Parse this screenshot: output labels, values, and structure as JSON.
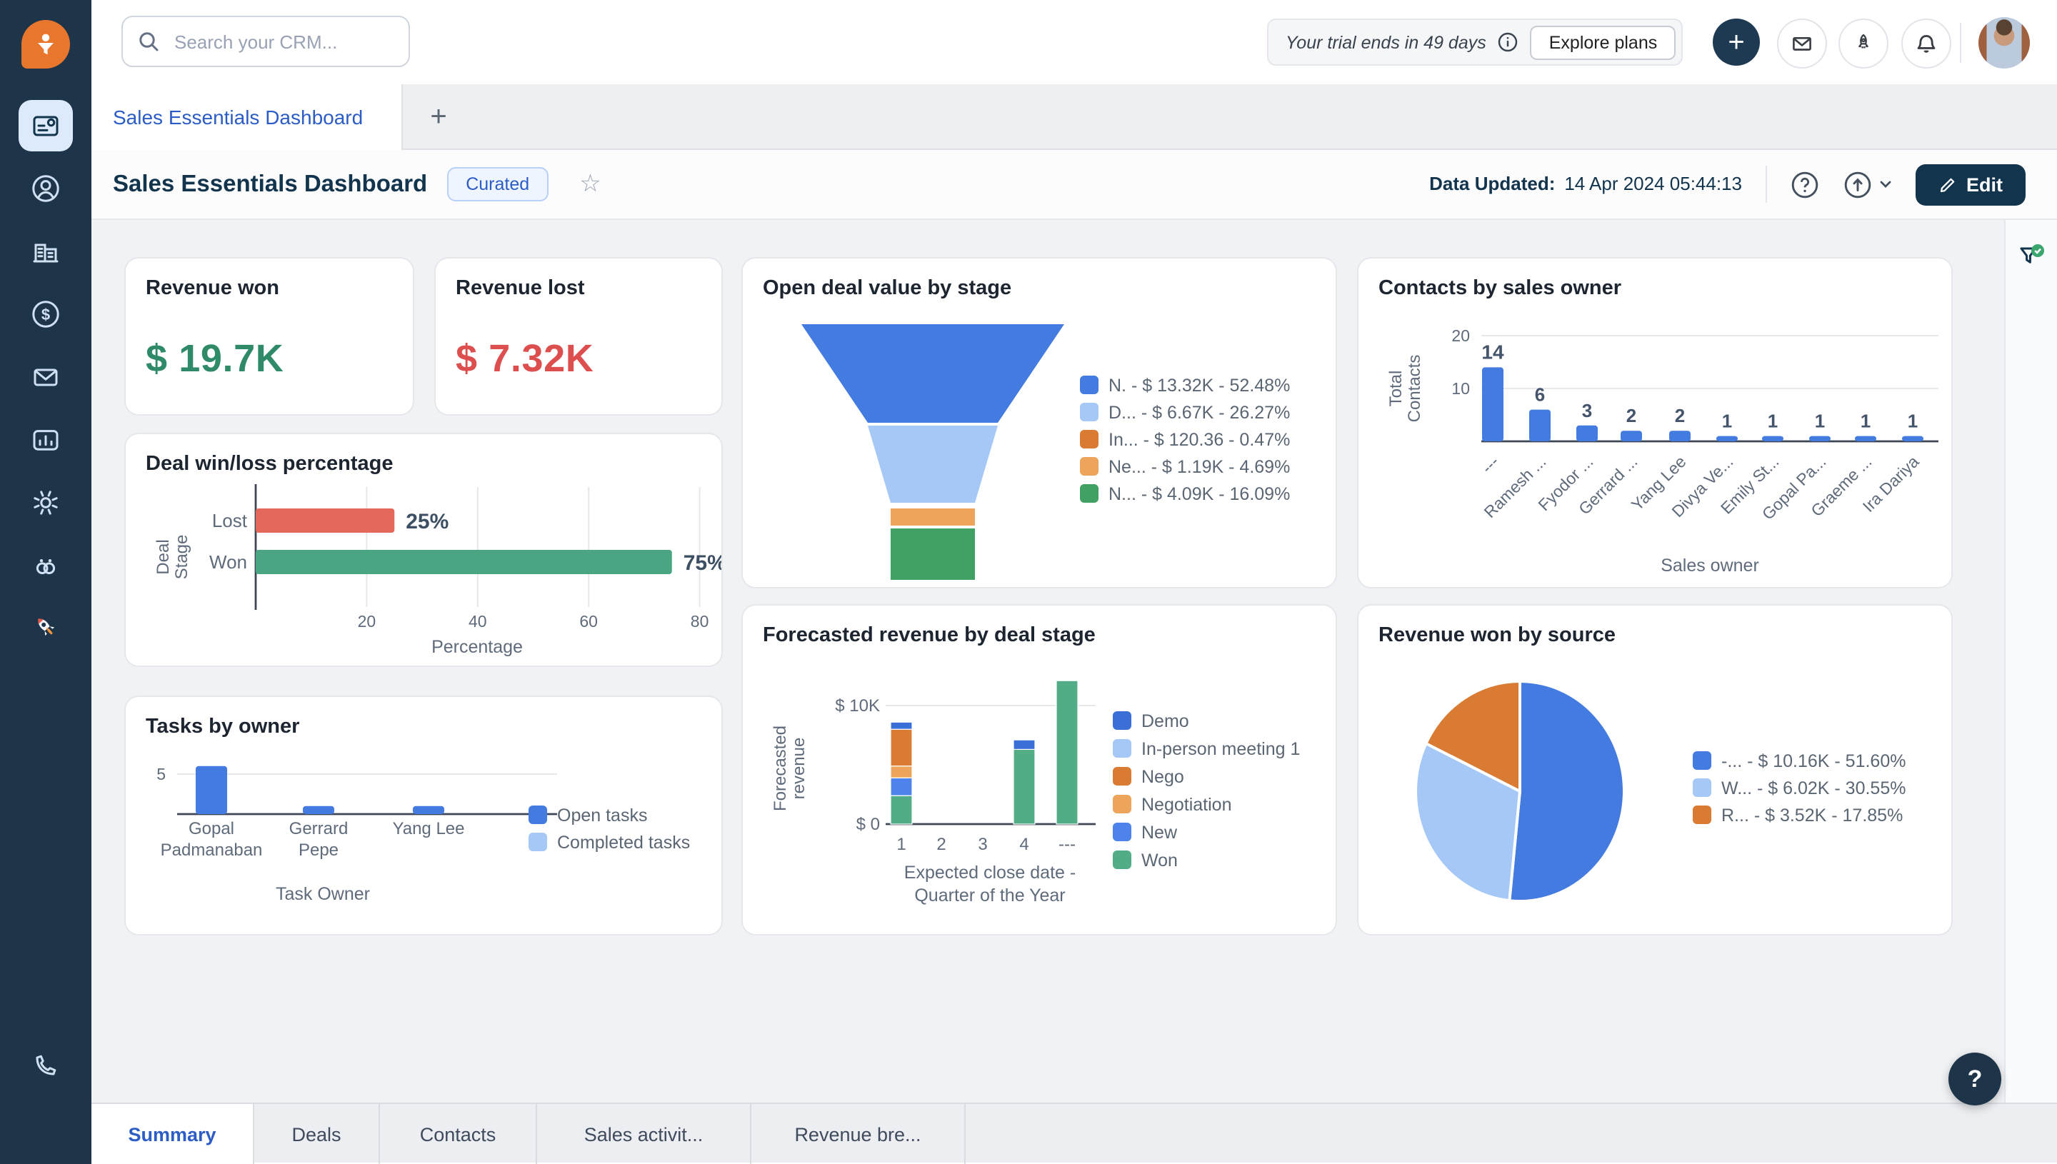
{
  "colors": {
    "blue": "#447be0",
    "light_blue": "#a6c8f7",
    "dark_orange": "#d97b33",
    "light_orange": "#eda55c",
    "funnel_green": "#41a164",
    "won_green": "#52ad87",
    "lost_red": "#e5685c",
    "deal_won_teal": "#4aa682",
    "demo_blue": "#3a6fd8",
    "new_blue": "#4d83ea",
    "kpi_green": "#2f8a68",
    "kpi_red": "#dd4f4f",
    "navy": "#12344d",
    "sidebar": "#1d3449",
    "accent": "#2c5cc5"
  },
  "topbar": {
    "search_placeholder": "Search your CRM...",
    "trial_text": "Your trial ends in 49 days",
    "explore_plans": "Explore plans",
    "icons": [
      "plus-icon",
      "envelope-icon",
      "rocket-icon",
      "bell-icon",
      "avatar"
    ]
  },
  "tabbar": {
    "active_tab": "Sales Essentials Dashboard",
    "add_tab": "+"
  },
  "header": {
    "title": "Sales Essentials Dashboard",
    "badge": "Curated",
    "updated_label": "Data Updated:",
    "updated_value": "14 Apr 2024 05:44:13",
    "edit_label": "Edit",
    "icons": [
      "star-icon",
      "help-icon",
      "share-icon",
      "chevron-down-icon",
      "pencil-icon"
    ]
  },
  "sidebar": {
    "icons": [
      "freshsales-logo",
      "dashboard-icon",
      "contacts-icon",
      "accounts-icon",
      "deals-icon",
      "email-icon",
      "analytics-icon",
      "settings-icon",
      "freddy-ai-icon",
      "rocket-icon",
      "phone-icon",
      "apps-grid-icon"
    ]
  },
  "bottom_tabs": [
    {
      "label": "Summary",
      "active": true
    },
    {
      "label": "Deals",
      "active": false
    },
    {
      "label": "Contacts",
      "active": false
    },
    {
      "label": "Sales activit...",
      "active": false
    },
    {
      "label": "Revenue bre...",
      "active": false
    }
  ],
  "help_fab": "?",
  "cards": {
    "revenue_won": {
      "title": "Revenue won",
      "value": "$ 19.7K"
    },
    "revenue_lost": {
      "title": "Revenue lost",
      "value": "$ 7.32K"
    },
    "deal_winloss": {
      "title": "Deal win/loss percentage",
      "chart_data": {
        "type": "bar",
        "orientation": "horizontal",
        "categories": [
          "Lost",
          "Won"
        ],
        "values": [
          25,
          75
        ],
        "labels": [
          "25%",
          "75%"
        ],
        "bar_colors": [
          "lost_red",
          "deal_won_teal"
        ],
        "xticks": [
          20,
          40,
          60,
          80
        ],
        "xlabel": "Percentage",
        "ylabel": [
          "Deal",
          "Stage"
        ],
        "xlim": [
          0,
          85
        ]
      }
    },
    "tasks_by_owner": {
      "title": "Tasks by owner",
      "chart_data": {
        "type": "bar",
        "categories": [
          [
            "Gopal",
            "Padmanaban"
          ],
          [
            "Gerrard",
            "Pepe"
          ],
          [
            "Yang Lee"
          ]
        ],
        "series": [
          {
            "name": "Open tasks",
            "color": "blue",
            "values": [
              6,
              1,
              1
            ]
          },
          {
            "name": "Completed tasks",
            "color": "light_blue",
            "values": [
              0,
              0,
              0
            ]
          }
        ],
        "yticks": [
          5
        ],
        "xlabel": "Task Owner",
        "legend_position": "right"
      }
    },
    "open_deal_funnel": {
      "title": "Open deal value by stage",
      "chart_data": {
        "type": "funnel",
        "stages": [
          {
            "label": "N.",
            "value": "$ 13.32K",
            "pct": "52.48%",
            "color": "blue"
          },
          {
            "label": "D...",
            "value": "$ 6.67K",
            "pct": "26.27%",
            "color": "light_blue"
          },
          {
            "label": "In...",
            "value": "$ 120.36",
            "pct": "0.47%",
            "color": "dark_orange"
          },
          {
            "label": "Ne...",
            "value": "$ 1.19K",
            "pct": "4.69%",
            "color": "light_orange"
          },
          {
            "label": "N...",
            "value": "$ 4.09K",
            "pct": "16.09%",
            "color": "funnel_green"
          }
        ],
        "legend_position": "right"
      }
    },
    "forecasted_revenue": {
      "title": "Forecasted revenue by deal stage",
      "chart_data": {
        "type": "stacked-bar",
        "categories": [
          "1",
          "2",
          "3",
          "4",
          "---"
        ],
        "series": [
          {
            "name": "Demo",
            "color": "demo_blue",
            "values": [
              0.6,
              0,
              0,
              0.8,
              0
            ]
          },
          {
            "name": "In-person meeting 1",
            "color": "light_blue",
            "values": [
              0,
              0,
              0,
              0,
              0
            ]
          },
          {
            "name": "Nego",
            "color": "dark_orange",
            "values": [
              3.1,
              0,
              0,
              0,
              0
            ]
          },
          {
            "name": "Negotiation",
            "color": "light_orange",
            "values": [
              1.0,
              0,
              0,
              0,
              0
            ]
          },
          {
            "name": "New",
            "color": "new_blue",
            "values": [
              1.5,
              0,
              0,
              0,
              0
            ]
          },
          {
            "name": "Won",
            "color": "won_green",
            "values": [
              2.4,
              0,
              0,
              6.3,
              12.1
            ]
          }
        ],
        "stack_order": [
          "Won",
          "New",
          "Negotiation",
          "Nego",
          "In-person meeting 1",
          "Demo"
        ],
        "unit": "K",
        "yticks": [
          "$ 0",
          "$ 10K"
        ],
        "ylim": [
          0,
          12.5
        ],
        "ylabel": [
          "Forecasted",
          "revenue"
        ],
        "xlabel": [
          "Expected close date -",
          "Quarter of the Year"
        ],
        "legend_position": "right"
      }
    },
    "contacts_by_owner": {
      "title": "Contacts by sales owner",
      "chart_data": {
        "type": "bar",
        "categories": [
          "---",
          "Ramesh ...",
          "Fyodor ...",
          "Gerrard ...",
          "Yang Lee",
          "Divya Ve...",
          "Emily St...",
          "Gopal Pa...",
          "Graeme ...",
          "Ira Dariya"
        ],
        "values": [
          14,
          6,
          3,
          2,
          2,
          1,
          1,
          1,
          1,
          1
        ],
        "bar_color": "blue",
        "yticks": [
          10,
          20
        ],
        "ylim": [
          0,
          20
        ],
        "ylabel": [
          "Total",
          "Contacts"
        ],
        "xlabel": "Sales owner"
      }
    },
    "revenue_by_source": {
      "title": "Revenue won by source",
      "chart_data": {
        "type": "pie",
        "slices": [
          {
            "label": "-...",
            "value": "$ 10.16K",
            "pct": 51.6,
            "color": "blue"
          },
          {
            "label": "W...",
            "value": "$ 6.02K",
            "pct": 30.55,
            "color": "light_blue"
          },
          {
            "label": "R...",
            "value": "$ 3.52K",
            "pct": 17.85,
            "color": "dark_orange"
          }
        ],
        "legend_position": "right"
      }
    }
  },
  "right_rail": {
    "icon": "filter-funnel-check-icon"
  }
}
